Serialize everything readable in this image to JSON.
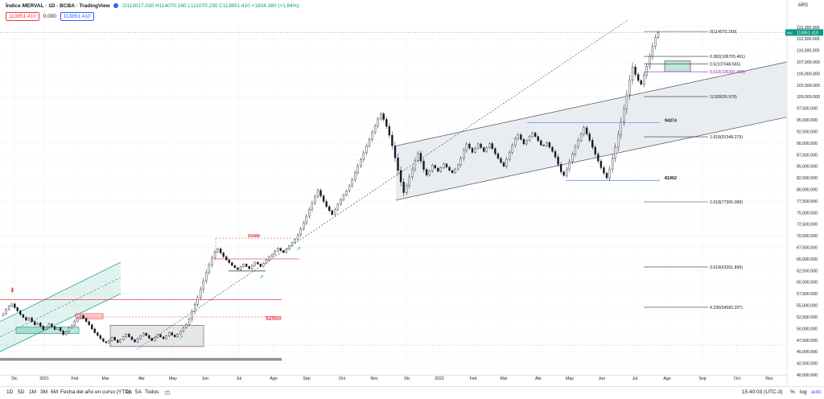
{
  "header": {
    "symbol": "Índice MERVAL · 1D · BCBA · TradingView",
    "ohlc": "O113017.030 H114070.160 L111070.230 C113851.410 +1834.380 (+1.64%)",
    "sell_price": "113851.410",
    "spread": "0.000",
    "buy_price": "113851.410",
    "currency": "ARS"
  },
  "bottom_bar": {
    "ranges": [
      "1D",
      "5D",
      "1M",
      "3M",
      "6M",
      "Fecha del año en curso (YTD)",
      "1A",
      "5A",
      "Todos"
    ],
    "clock": "15:40:03 (UTC-3)",
    "percent": "%",
    "log": "log",
    "auto": "auto"
  },
  "colors": {
    "up": "#089981",
    "down": "#f23645",
    "channel_fill": "#e9ecf0",
    "fib_purple": "#9c27b0",
    "blue_line": "#2962ff"
  },
  "chart_data": {
    "type": "candlestick",
    "y_range": [
      40000,
      116000
    ],
    "y_ticks": [
      40000,
      42500,
      45000,
      47500,
      50000,
      52500,
      55000,
      57500,
      60000,
      62500,
      65000,
      67500,
      70000,
      72500,
      75000,
      77500,
      80000,
      82500,
      85000,
      87500,
      90000,
      92500,
      95000,
      97500,
      100000,
      102500,
      105000,
      107500,
      110000,
      112500,
      115000
    ],
    "x_labels": [
      "Dic",
      "2021",
      "Feb",
      "Mar",
      "Abr",
      "May",
      "Jun",
      "Jul",
      "Ago",
      "Sep",
      "Oct",
      "Nov",
      "Dic",
      "2022",
      "Feb",
      "Mar",
      "Abr",
      "May",
      "Jun",
      "Jul",
      "Ago",
      "Sep",
      "Oct",
      "Nov"
    ],
    "last_price_label": "113851.410",
    "last_tag": "MV",
    "fib_levels": [
      {
        "label": "0(114070.160)",
        "value": 114070
      },
      {
        "label": "0.382(108705.461)",
        "value": 108705
      },
      {
        "label": "0.5(107048.565)",
        "value": 107048
      },
      {
        "label": "0.618(105391.469)",
        "value": 105391
      },
      {
        "label": "1(100026.970)",
        "value": 100027
      },
      {
        "label": "1.618(91348.279)",
        "value": 91348
      },
      {
        "label": "2.618(77305.089)",
        "value": 77305
      },
      {
        "label": "3.618(63261.899)",
        "value": 63262
      },
      {
        "label": "4.236(54583.207)",
        "value": 54583
      }
    ],
    "annotations": [
      {
        "text": "94374",
        "value": 94374
      },
      {
        "text": "81962",
        "value": 81962
      },
      {
        "text": "69488",
        "value": 69488
      },
      {
        "text": "52500",
        "value": 52500
      }
    ],
    "closes": [
      53200,
      54100,
      54800,
      55300,
      54500,
      53800,
      53000,
      52400,
      51800,
      52300,
      51500,
      50800,
      51200,
      50500,
      49800,
      50300,
      51000,
      50400,
      49800,
      50200,
      49500,
      48700,
      49300,
      50100,
      50700,
      51600,
      52300,
      52800,
      52200,
      51500,
      50800,
      49900,
      49100,
      48500,
      47800,
      47200,
      46900,
      47400,
      48100,
      47500,
      47000,
      47600,
      48200,
      48800,
      48200,
      47600,
      47100,
      47800,
      48400,
      49000,
      48500,
      47900,
      47400,
      48100,
      48700,
      48200,
      47800,
      48400,
      49100,
      48600,
      48200,
      48800,
      49400,
      50200,
      50900,
      52000,
      53600,
      55200,
      56700,
      58400,
      60300,
      62100,
      63700,
      65200,
      66500,
      67200,
      66300,
      65500,
      64800,
      64200,
      63600,
      63100,
      62700,
      63300,
      63900,
      63400,
      62900,
      63600,
      64300,
      63900,
      63400,
      64100,
      64800,
      65500,
      66000,
      66700,
      67300,
      66800,
      66400,
      67100,
      67800,
      68500,
      69200,
      70200,
      71500,
      72800,
      74200,
      75700,
      77100,
      78500,
      79800,
      78600,
      77400,
      76300,
      75400,
      74600,
      75700,
      76800,
      77800,
      78800,
      79700,
      80800,
      82100,
      83600,
      85100,
      86400,
      87900,
      89400,
      90800,
      92300,
      93700,
      95200,
      96300,
      95100,
      93600,
      91700,
      89400,
      86800,
      84100,
      81600,
      79300,
      80800,
      82700,
      84400,
      86300,
      87800,
      86100,
      84300,
      83100,
      84000,
      85200,
      84600,
      83900,
      84700,
      85500,
      84800,
      84100,
      83600,
      84400,
      85300,
      86700,
      88400,
      89800,
      88900,
      88000,
      88900,
      89800,
      89000,
      88200,
      89000,
      89900,
      88800,
      87700,
      86700,
      85800,
      85000,
      86500,
      88000,
      89500,
      90900,
      91800,
      90800,
      89800,
      90600,
      91400,
      92200,
      91400,
      90500,
      89600,
      89400,
      90100,
      89100,
      88200,
      87000,
      85400,
      83800,
      83000,
      84400,
      86000,
      87600,
      89200,
      90600,
      91900,
      93300,
      92000,
      90600,
      89100,
      87600,
      86100,
      84700,
      83500,
      82500,
      84400,
      86700,
      89100,
      91800,
      94600,
      97300,
      100400,
      103600,
      106400,
      104800,
      103500,
      102700,
      104600,
      106600,
      108700,
      110900,
      112800,
      113851
    ],
    "channels": [
      {
        "name": "ascending-channel-2021",
        "color": "#089981"
      },
      {
        "name": "ascending-channel-2022",
        "color": "#787b86"
      }
    ],
    "grid": true
  }
}
